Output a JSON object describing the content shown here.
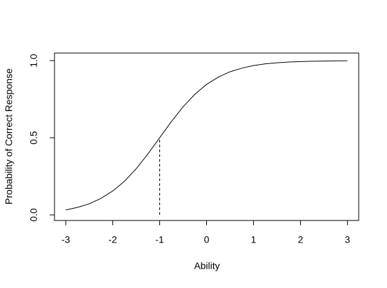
{
  "chart_data": {
    "type": "line",
    "x_label": "Ability",
    "y_label": "Probability of Correct Response",
    "x": [
      -3,
      -2.75,
      -2.5,
      -2.25,
      -2,
      -1.75,
      -1.5,
      -1.25,
      -1,
      -0.75,
      -0.5,
      -0.25,
      0,
      0.25,
      0.5,
      0.75,
      1,
      1.25,
      1.5,
      1.75,
      2,
      2.25,
      2.5,
      2.75,
      3
    ],
    "values": [
      0.032,
      0.049,
      0.072,
      0.107,
      0.155,
      0.218,
      0.299,
      0.395,
      0.5,
      0.605,
      0.701,
      0.782,
      0.846,
      0.893,
      0.928,
      0.951,
      0.968,
      0.979,
      0.986,
      0.991,
      0.994,
      0.996,
      0.997,
      0.998,
      0.999
    ],
    "color": "#000000",
    "reference_line": {
      "x": -1,
      "y": 0.5
    },
    "xlim": [
      -3.24,
      3.24
    ],
    "ylim": [
      -0.036,
      1.049
    ],
    "xticks": [
      -3,
      -2,
      -1,
      0,
      1,
      2,
      3
    ],
    "yticks": [
      {
        "value": 0,
        "label": "0.0"
      },
      0.5,
      {
        "value": 1,
        "label": "1.0"
      }
    ]
  }
}
